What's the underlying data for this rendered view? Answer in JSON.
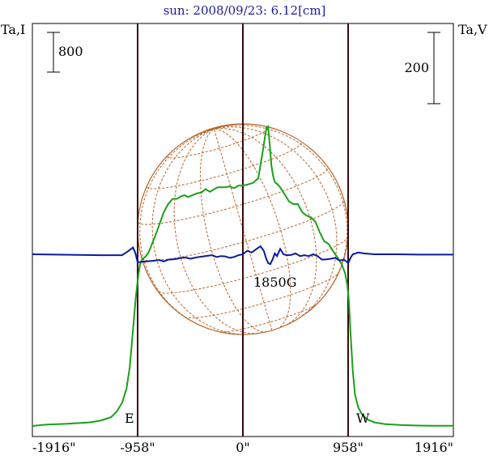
{
  "chart_data": {
    "type": "line",
    "title": "sun: 2008/09/23: 6.12[cm]",
    "left_axis_label": "Ta,I",
    "right_axis_label": "Ta,V",
    "x_ticks": [
      {
        "value": -1916,
        "label": "-1916\""
      },
      {
        "value": -958,
        "label": "-958\""
      },
      {
        "value": 0,
        "label": "0\""
      },
      {
        "value": 958,
        "label": "958\""
      },
      {
        "value": 1916,
        "label": "1916\""
      }
    ],
    "xlim": [
      -1916,
      1916
    ],
    "vertical_lines": [
      -958,
      0,
      958
    ],
    "scale_bars": [
      {
        "side": "left",
        "label": "800"
      },
      {
        "side": "right",
        "label": "200"
      }
    ],
    "disk_labels": {
      "east": "E",
      "west": "W"
    },
    "annotation": "1850G",
    "colors": {
      "stokes_i": "#1aa01a",
      "stokes_v": "#0a1aa0",
      "grid": "#b8642a",
      "lines": "#3a0a0a",
      "title": "#1a1a9a"
    },
    "series": [
      {
        "key": "I",
        "x": [
          -1916,
          -1800,
          -1600,
          -1400,
          -1300,
          -1200,
          -1150,
          -1100,
          -1060,
          -1030,
          -1010,
          -990,
          -975,
          -962,
          -950,
          -935,
          -915,
          -890,
          -860,
          -820,
          -780,
          -720,
          -680,
          -640,
          -600,
          -560,
          -530,
          -500,
          -460,
          -420,
          -380,
          -340,
          -300,
          -260,
          -230,
          -200,
          -160,
          -120,
          -80,
          -40,
          0,
          40,
          90,
          140,
          180,
          215,
          230,
          245,
          260,
          275,
          290,
          310,
          340,
          380,
          420,
          460,
          500,
          540,
          580,
          620,
          660,
          700,
          740,
          780,
          820,
          860,
          900,
          930,
          950,
          965,
          980,
          1000,
          1020,
          1050,
          1090,
          1140,
          1200,
          1300,
          1450,
          1600,
          1750,
          1916
        ],
        "y": [
          0,
          15,
          25,
          40,
          60,
          100,
          160,
          260,
          420,
          660,
          940,
          1240,
          1450,
          1600,
          1720,
          1830,
          1890,
          1910,
          1960,
          2080,
          2210,
          2420,
          2510,
          2570,
          2570,
          2600,
          2610,
          2590,
          2610,
          2630,
          2640,
          2680,
          2650,
          2680,
          2700,
          2700,
          2700,
          2710,
          2690,
          2720,
          2720,
          2730,
          2750,
          2800,
          3100,
          3380,
          3390,
          3180,
          2940,
          2830,
          2760,
          2740,
          2700,
          2620,
          2540,
          2510,
          2510,
          2420,
          2380,
          2360,
          2310,
          2190,
          2090,
          2060,
          1980,
          1910,
          1830,
          1730,
          1600,
          1420,
          1050,
          630,
          360,
          210,
          120,
          70,
          40,
          20,
          10,
          5,
          3,
          2
        ]
      },
      {
        "key": "V",
        "x": [
          -1916,
          -1700,
          -1500,
          -1300,
          -1200,
          -1100,
          -1050,
          -1000,
          -980,
          -958,
          -920,
          -880,
          -840,
          -800,
          -760,
          -720,
          -680,
          -640,
          -600,
          -560,
          -520,
          -480,
          -440,
          -400,
          -360,
          -320,
          -280,
          -240,
          -200,
          -160,
          -120,
          -80,
          -40,
          0,
          40,
          80,
          120,
          160,
          190,
          210,
          230,
          250,
          270,
          290,
          310,
          340,
          370,
          400,
          440,
          480,
          520,
          560,
          600,
          640,
          680,
          720,
          760,
          800,
          840,
          880,
          920,
          940,
          958,
          980,
          1000,
          1050,
          1100,
          1200,
          1400,
          1600,
          1800,
          1916
        ],
        "y": [
          0,
          -2,
          -3,
          -5,
          -5,
          -5,
          15,
          38,
          10,
          -45,
          -42,
          -40,
          -38,
          -35,
          -32,
          -40,
          -30,
          -28,
          -25,
          -20,
          -18,
          -25,
          -20,
          -15,
          -12,
          -8,
          -5,
          -15,
          -10,
          -12,
          -20,
          -15,
          -5,
          0,
          20,
          10,
          28,
          45,
          20,
          -20,
          -50,
          -55,
          -30,
          5,
          -10,
          30,
          0,
          -5,
          -3,
          5,
          -10,
          -5,
          -10,
          0,
          -10,
          -30,
          -28,
          -25,
          -20,
          -35,
          -30,
          -40,
          -50,
          -20,
          0,
          10,
          5,
          0,
          0,
          -2,
          -2,
          -2
        ]
      }
    ]
  }
}
